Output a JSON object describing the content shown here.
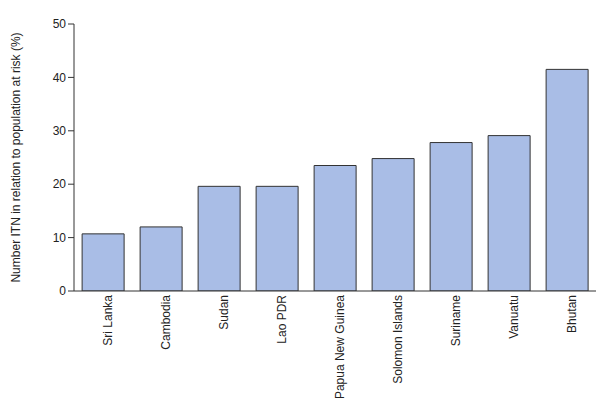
{
  "chart_data": {
    "type": "bar",
    "y_label": "Number ITN in relation to population at risk (%)",
    "categories": [
      "Sri Lanka",
      "Cambodia",
      "Sudan",
      "Lao PDR",
      "Papua New Guinea",
      "Solomon Islands",
      "Suriname",
      "Vanuatu",
      "Bhutan"
    ],
    "values": [
      10.7,
      12,
      19.6,
      19.6,
      23.5,
      24.8,
      27.8,
      29.1,
      41.5
    ],
    "color": "#a9bde6",
    "ylim": [
      0,
      50
    ],
    "yticks": [
      0,
      10,
      20,
      30,
      40,
      50
    ],
    "grid": false
  }
}
